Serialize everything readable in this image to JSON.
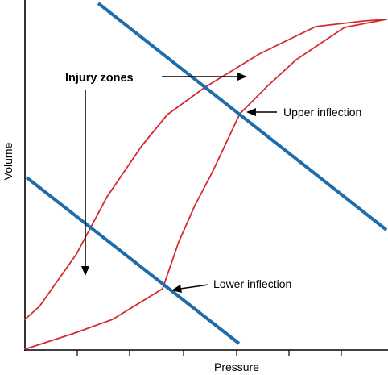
{
  "labels": {
    "x_axis": "Pressure",
    "y_axis": "Volume",
    "injury_zones": "Injury zones",
    "upper_inflection": "Upper inflection",
    "lower_inflection": "Lower inflection"
  },
  "colors": {
    "curve": "#d42a2f",
    "zone_line": "#1f6cab",
    "axis": "#000000",
    "text": "#000000"
  }
}
